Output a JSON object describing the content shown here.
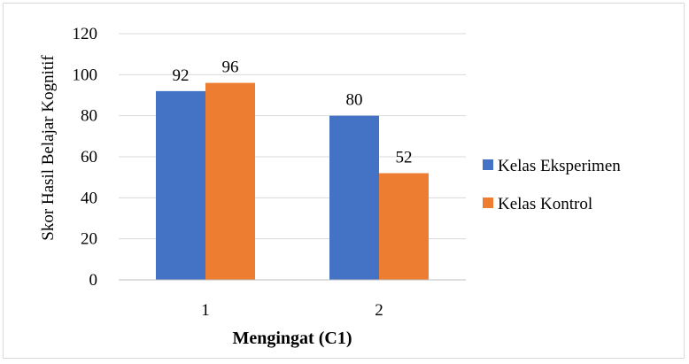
{
  "chart_data": {
    "type": "bar",
    "title": "",
    "xlabel": "Mengingat (C1)",
    "ylabel": "Skor Hasil Belajar Kognitif",
    "categories": [
      "1",
      "2"
    ],
    "series": [
      {
        "name": "Kelas Eksperimen",
        "values": [
          92,
          80
        ],
        "color": "#4472c4"
      },
      {
        "name": "Kelas Kontrol",
        "values": [
          96,
          52
        ],
        "color": "#ed7d31"
      }
    ],
    "ylim": [
      0,
      120
    ],
    "yticks": [
      "0",
      "20",
      "40",
      "60",
      "80",
      "100",
      "120"
    ],
    "grid": true,
    "legend_position": "right"
  }
}
